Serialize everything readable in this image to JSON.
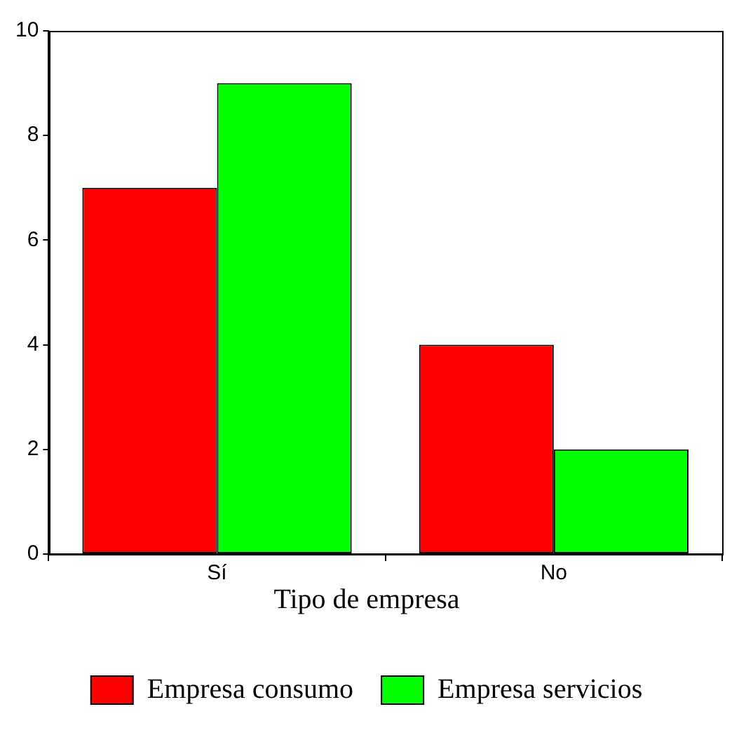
{
  "chart_data": {
    "type": "bar",
    "categories": [
      "Sí",
      "No"
    ],
    "legend_title": "Tipo de empresa",
    "legend": "bottom right",
    "grid": false,
    "ylim": [
      0,
      10
    ],
    "yticks": [
      0,
      2,
      4,
      6,
      8,
      10
    ],
    "series": [
      {
        "name": "Empresa consumo",
        "color": "#ff0000",
        "values": [
          7,
          4
        ]
      },
      {
        "name": "Empresa servicios",
        "color": "#00ff00",
        "values": [
          9,
          2
        ]
      }
    ]
  }
}
